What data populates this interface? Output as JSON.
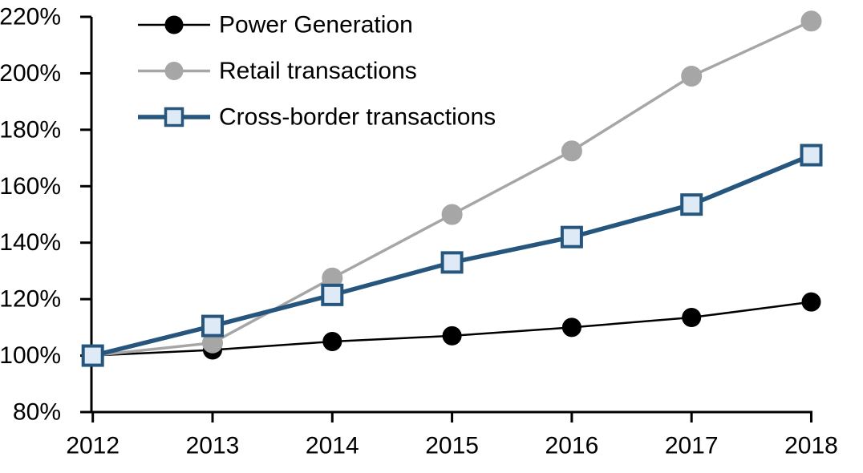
{
  "chart_data": {
    "type": "line",
    "title": "",
    "xlabel": "",
    "ylabel": "",
    "x": [
      "2012",
      "2013",
      "2014",
      "2015",
      "2016",
      "2017",
      "2018"
    ],
    "series": [
      {
        "name": "Power Generation",
        "values": [
          100,
          102,
          105,
          107,
          110,
          113.5,
          119
        ],
        "line_color": "#000000",
        "line_width": 2.5,
        "marker": "circle",
        "marker_fill": "#000000",
        "marker_stroke": "#000000",
        "marker_size": 11.5
      },
      {
        "name": "Retail transactions",
        "values": [
          100,
          104.5,
          127.5,
          150,
          172.5,
          199,
          218.5
        ],
        "line_color": "#A6A6A6",
        "line_width": 3.5,
        "marker": "circle",
        "marker_fill": "#A6A6A6",
        "marker_stroke": "#A6A6A6",
        "marker_size": 12.5
      },
      {
        "name": "Cross-border transactions",
        "values": [
          100,
          110.5,
          121.5,
          133,
          142,
          153.5,
          171
        ],
        "line_color": "#26567D",
        "line_width": 5.5,
        "marker": "square",
        "marker_fill": "#DEEAF6",
        "marker_stroke": "#26567D",
        "marker_size": 12
      }
    ],
    "ylim": [
      80,
      220
    ],
    "ytick_step": 20,
    "ytick_labels": [
      "80%",
      "100%",
      "120%",
      "140%",
      "160%",
      "180%",
      "200%",
      "220%"
    ],
    "xtick_labels": [
      "2012",
      "2013",
      "2014",
      "2015",
      "2016",
      "2017",
      "2018"
    ],
    "legend_position": "top-left",
    "legend_entries": [
      "Power Generation",
      "Retail transactions",
      "Cross-border transactions"
    ],
    "grid": false,
    "axis_color": "#000000",
    "background_color": "#FFFFFF",
    "draw_order": [
      0,
      1,
      2
    ]
  }
}
